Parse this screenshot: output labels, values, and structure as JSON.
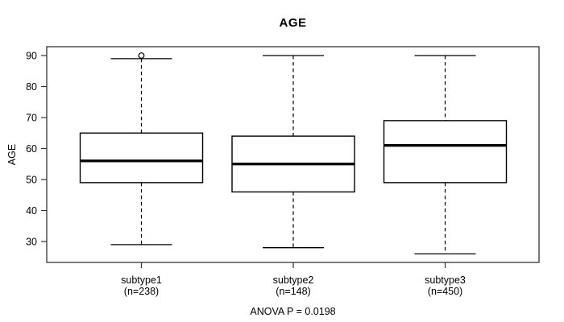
{
  "title": "AGE",
  "colors": {
    "background": "#ffffff",
    "frame": "#333333",
    "box_stroke": "#000000",
    "box_fill": "#ffffff",
    "text": "#000000"
  },
  "chart_data": {
    "type": "boxplot",
    "title": "AGE",
    "xlabel": "",
    "ylabel": "AGE",
    "caption": "ANOVA P = 0.0198",
    "ylim": [
      23.3,
      92.9
    ],
    "yticks": [
      30,
      40,
      50,
      60,
      70,
      80,
      90
    ],
    "grid": false,
    "categories": [
      "subtype1",
      "subtype2",
      "subtype3"
    ],
    "category_sublabels": [
      "(n=238)",
      "(n=148)",
      "(n=450)"
    ],
    "series": [
      {
        "name": "subtype1",
        "n": 238,
        "whisker_low": 29,
        "q1": 49,
        "median": 56,
        "q3": 65,
        "whisker_high": 89,
        "outliers": [
          90
        ]
      },
      {
        "name": "subtype2",
        "n": 148,
        "whisker_low": 28,
        "q1": 46,
        "median": 55,
        "q3": 64,
        "whisker_high": 90,
        "outliers": []
      },
      {
        "name": "subtype3",
        "n": 450,
        "whisker_low": 26,
        "q1": 49,
        "median": 61,
        "q3": 69,
        "whisker_high": 90,
        "outliers": []
      }
    ]
  }
}
